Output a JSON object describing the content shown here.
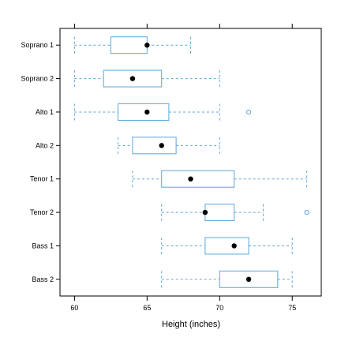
{
  "chart_data": {
    "type": "boxplot",
    "orientation": "horizontal",
    "title": "",
    "xlabel": "Height (inches)",
    "ylabel": "",
    "xlim": [
      59,
      77
    ],
    "xticks": [
      60,
      65,
      70,
      75
    ],
    "xtick_labels": [
      "60",
      "65",
      "70",
      "75"
    ],
    "grid": false,
    "colors": {
      "box": "#5aa7d8",
      "median": "#000000",
      "frame": "#000000"
    },
    "categories": [
      "Soprano 1",
      "Soprano 2",
      "Alto 1",
      "Alto 2",
      "Tenor 1",
      "Tenor 2",
      "Bass 1",
      "Bass 2"
    ],
    "series": [
      {
        "category": "Soprano 1",
        "whisker_low": 60,
        "q1": 62.5,
        "median": 65,
        "q3": 65,
        "whisker_high": 68,
        "outliers": []
      },
      {
        "category": "Soprano 2",
        "whisker_low": 60,
        "q1": 62,
        "median": 64,
        "q3": 66,
        "whisker_high": 70,
        "outliers": []
      },
      {
        "category": "Alto 1",
        "whisker_low": 60,
        "q1": 63,
        "median": 65,
        "q3": 66.5,
        "whisker_high": 70,
        "outliers": [
          72
        ]
      },
      {
        "category": "Alto 2",
        "whisker_low": 63,
        "q1": 64,
        "median": 66,
        "q3": 67,
        "whisker_high": 70,
        "outliers": []
      },
      {
        "category": "Tenor 1",
        "whisker_low": 64,
        "q1": 66,
        "median": 68,
        "q3": 71,
        "whisker_high": 76,
        "outliers": []
      },
      {
        "category": "Tenor 2",
        "whisker_low": 66,
        "q1": 69,
        "median": 69,
        "q3": 71,
        "whisker_high": 73,
        "outliers": [
          76
        ]
      },
      {
        "category": "Bass 1",
        "whisker_low": 66,
        "q1": 69,
        "median": 71,
        "q3": 72,
        "whisker_high": 75,
        "outliers": []
      },
      {
        "category": "Bass 2",
        "whisker_low": 66,
        "q1": 70,
        "median": 72,
        "q3": 74,
        "whisker_high": 75,
        "outliers": []
      }
    ]
  }
}
